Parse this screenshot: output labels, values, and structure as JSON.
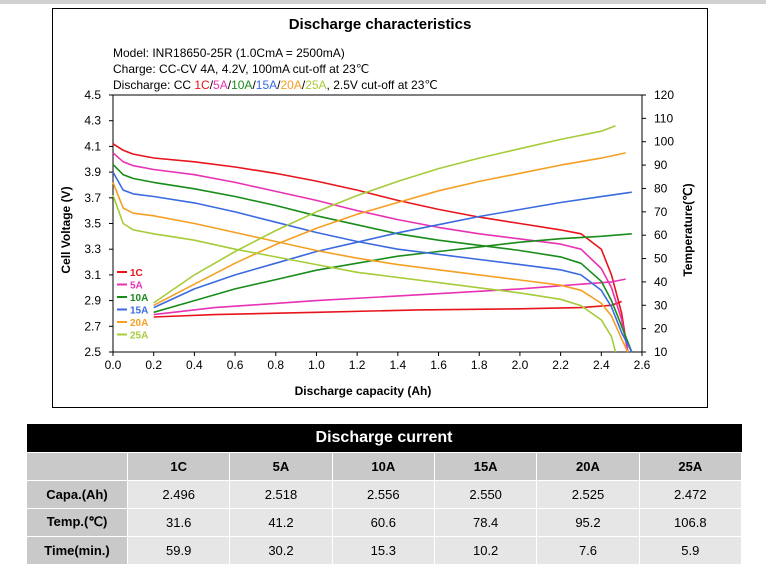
{
  "chart_data": {
    "type": "line",
    "title": "Discharge characteristics",
    "notes": {
      "model": "Model: INR18650-25R (1.0CmA = 2500mA)",
      "charge": "Charge: CC-CV 4A, 4.2V, 100mA cut-off at 23℃",
      "discharge_prefix": "Discharge: CC ",
      "discharge_suffix": ", 2.5V cut-off at 23℃",
      "sep": "/"
    },
    "xlabel": "Discharge capacity (Ah)",
    "ylabel": "Cell Voltage (V)",
    "y2label": "Temperature(℃)",
    "xlim": [
      0.0,
      2.6
    ],
    "ylim": [
      2.5,
      4.5
    ],
    "y2lim": [
      10,
      120
    ],
    "x_ticks": [
      "0.0",
      "0.2",
      "0.4",
      "0.6",
      "0.8",
      "1.0",
      "1.2",
      "1.4",
      "1.6",
      "1.8",
      "2.0",
      "2.2",
      "2.4",
      "2.6"
    ],
    "y_ticks": [
      "4.5",
      "4.3",
      "4.1",
      "3.9",
      "3.7",
      "3.5",
      "3.3",
      "3.1",
      "2.9",
      "2.7",
      "2.5"
    ],
    "y2_ticks": [
      "120",
      "110",
      "100",
      "90",
      "80",
      "70",
      "60",
      "50",
      "40",
      "30",
      "20",
      "10"
    ],
    "legend_position": "bottom-left",
    "series": [
      {
        "name": "1C",
        "color": "#e8141c",
        "voltage": [
          [
            0.0,
            4.12
          ],
          [
            0.05,
            4.07
          ],
          [
            0.1,
            4.04
          ],
          [
            0.2,
            4.01
          ],
          [
            0.4,
            3.98
          ],
          [
            0.6,
            3.94
          ],
          [
            0.8,
            3.89
          ],
          [
            1.0,
            3.83
          ],
          [
            1.2,
            3.76
          ],
          [
            1.4,
            3.68
          ],
          [
            1.6,
            3.61
          ],
          [
            1.8,
            3.55
          ],
          [
            2.0,
            3.5
          ],
          [
            2.2,
            3.45
          ],
          [
            2.3,
            3.42
          ],
          [
            2.4,
            3.3
          ],
          [
            2.45,
            3.1
          ],
          [
            2.5,
            2.8
          ],
          [
            2.52,
            2.6
          ],
          [
            2.53,
            2.5
          ]
        ],
        "temperature": [
          [
            0.2,
            25
          ],
          [
            0.5,
            26
          ],
          [
            1.0,
            27
          ],
          [
            1.5,
            28
          ],
          [
            2.0,
            28.5
          ],
          [
            2.3,
            29
          ],
          [
            2.45,
            30
          ],
          [
            2.5,
            31.6
          ]
        ]
      },
      {
        "name": "5A",
        "color": "#e832b4",
        "voltage": [
          [
            0.0,
            4.05
          ],
          [
            0.05,
            3.98
          ],
          [
            0.1,
            3.95
          ],
          [
            0.2,
            3.92
          ],
          [
            0.4,
            3.88
          ],
          [
            0.6,
            3.82
          ],
          [
            0.8,
            3.75
          ],
          [
            1.0,
            3.68
          ],
          [
            1.2,
            3.6
          ],
          [
            1.4,
            3.53
          ],
          [
            1.6,
            3.47
          ],
          [
            1.8,
            3.42
          ],
          [
            2.0,
            3.38
          ],
          [
            2.2,
            3.34
          ],
          [
            2.3,
            3.3
          ],
          [
            2.4,
            3.15
          ],
          [
            2.45,
            3.0
          ],
          [
            2.5,
            2.75
          ],
          [
            2.53,
            2.5
          ]
        ],
        "temperature": [
          [
            0.2,
            26
          ],
          [
            0.5,
            29
          ],
          [
            1.0,
            32
          ],
          [
            1.5,
            34.5
          ],
          [
            2.0,
            37
          ],
          [
            2.3,
            39
          ],
          [
            2.45,
            40
          ],
          [
            2.52,
            41.2
          ]
        ]
      },
      {
        "name": "10A",
        "color": "#1a8c1a",
        "voltage": [
          [
            0.0,
            3.96
          ],
          [
            0.05,
            3.88
          ],
          [
            0.1,
            3.85
          ],
          [
            0.2,
            3.82
          ],
          [
            0.4,
            3.77
          ],
          [
            0.6,
            3.71
          ],
          [
            0.8,
            3.64
          ],
          [
            1.0,
            3.56
          ],
          [
            1.2,
            3.49
          ],
          [
            1.4,
            3.42
          ],
          [
            1.6,
            3.37
          ],
          [
            1.8,
            3.33
          ],
          [
            2.0,
            3.29
          ],
          [
            2.2,
            3.24
          ],
          [
            2.3,
            3.19
          ],
          [
            2.4,
            3.05
          ],
          [
            2.45,
            2.9
          ],
          [
            2.5,
            2.7
          ],
          [
            2.55,
            2.5
          ]
        ],
        "temperature": [
          [
            0.2,
            27
          ],
          [
            0.4,
            32
          ],
          [
            0.6,
            37
          ],
          [
            0.8,
            41
          ],
          [
            1.0,
            45
          ],
          [
            1.2,
            48
          ],
          [
            1.4,
            51
          ],
          [
            1.6,
            53
          ],
          [
            1.8,
            55
          ],
          [
            2.0,
            57
          ],
          [
            2.2,
            58.5
          ],
          [
            2.4,
            59.5
          ],
          [
            2.55,
            60.6
          ]
        ]
      },
      {
        "name": "15A",
        "color": "#3b6ae0",
        "voltage": [
          [
            0.0,
            3.9
          ],
          [
            0.05,
            3.76
          ],
          [
            0.1,
            3.73
          ],
          [
            0.2,
            3.71
          ],
          [
            0.4,
            3.66
          ],
          [
            0.6,
            3.59
          ],
          [
            0.8,
            3.51
          ],
          [
            1.0,
            3.43
          ],
          [
            1.2,
            3.36
          ],
          [
            1.4,
            3.3
          ],
          [
            1.6,
            3.26
          ],
          [
            1.8,
            3.22
          ],
          [
            2.0,
            3.18
          ],
          [
            2.2,
            3.14
          ],
          [
            2.3,
            3.1
          ],
          [
            2.4,
            2.98
          ],
          [
            2.45,
            2.85
          ],
          [
            2.5,
            2.65
          ],
          [
            2.55,
            2.5
          ]
        ],
        "temperature": [
          [
            0.2,
            29
          ],
          [
            0.4,
            37
          ],
          [
            0.6,
            43
          ],
          [
            0.8,
            48
          ],
          [
            1.0,
            53
          ],
          [
            1.2,
            57
          ],
          [
            1.4,
            61
          ],
          [
            1.6,
            64.5
          ],
          [
            1.8,
            68
          ],
          [
            2.0,
            71
          ],
          [
            2.2,
            74
          ],
          [
            2.4,
            76.5
          ],
          [
            2.55,
            78.4
          ]
        ]
      },
      {
        "name": "20A",
        "color": "#f5a024",
        "voltage": [
          [
            0.0,
            3.82
          ],
          [
            0.05,
            3.62
          ],
          [
            0.1,
            3.58
          ],
          [
            0.2,
            3.56
          ],
          [
            0.4,
            3.5
          ],
          [
            0.6,
            3.43
          ],
          [
            0.8,
            3.36
          ],
          [
            1.0,
            3.29
          ],
          [
            1.2,
            3.23
          ],
          [
            1.4,
            3.18
          ],
          [
            1.6,
            3.14
          ],
          [
            1.8,
            3.1
          ],
          [
            2.0,
            3.06
          ],
          [
            2.2,
            3.02
          ],
          [
            2.3,
            2.98
          ],
          [
            2.4,
            2.88
          ],
          [
            2.45,
            2.78
          ],
          [
            2.5,
            2.6
          ],
          [
            2.53,
            2.5
          ]
        ],
        "temperature": [
          [
            0.2,
            30
          ],
          [
            0.4,
            39
          ],
          [
            0.6,
            48
          ],
          [
            0.8,
            56
          ],
          [
            1.0,
            63
          ],
          [
            1.2,
            69
          ],
          [
            1.4,
            74
          ],
          [
            1.6,
            79
          ],
          [
            1.8,
            83
          ],
          [
            2.0,
            86.5
          ],
          [
            2.2,
            90
          ],
          [
            2.4,
            93
          ],
          [
            2.52,
            95.2
          ]
        ]
      },
      {
        "name": "25A",
        "color": "#a6cc3a",
        "voltage": [
          [
            0.0,
            3.72
          ],
          [
            0.05,
            3.5
          ],
          [
            0.1,
            3.45
          ],
          [
            0.2,
            3.42
          ],
          [
            0.4,
            3.37
          ],
          [
            0.6,
            3.3
          ],
          [
            0.8,
            3.24
          ],
          [
            1.0,
            3.18
          ],
          [
            1.2,
            3.12
          ],
          [
            1.4,
            3.08
          ],
          [
            1.6,
            3.04
          ],
          [
            1.8,
            3.0
          ],
          [
            2.0,
            2.96
          ],
          [
            2.2,
            2.91
          ],
          [
            2.3,
            2.86
          ],
          [
            2.4,
            2.75
          ],
          [
            2.45,
            2.62
          ],
          [
            2.47,
            2.5
          ]
        ],
        "temperature": [
          [
            0.2,
            31
          ],
          [
            0.4,
            43
          ],
          [
            0.6,
            53
          ],
          [
            0.8,
            62
          ],
          [
            1.0,
            70
          ],
          [
            1.2,
            77
          ],
          [
            1.4,
            83
          ],
          [
            1.6,
            88.5
          ],
          [
            1.8,
            93
          ],
          [
            2.0,
            97
          ],
          [
            2.2,
            101
          ],
          [
            2.4,
            104.5
          ],
          [
            2.47,
            106.8
          ]
        ]
      }
    ]
  },
  "table": {
    "title": "Discharge current",
    "columns": [
      "1C",
      "5A",
      "10A",
      "15A",
      "20A",
      "25A"
    ],
    "rows": [
      {
        "label": "Capa.(Ah)",
        "values": [
          "2.496",
          "2.518",
          "2.556",
          "2.550",
          "2.525",
          "2.472"
        ]
      },
      {
        "label": "Temp.(℃)",
        "values": [
          "31.6",
          "41.2",
          "60.6",
          "78.4",
          "95.2",
          "106.8"
        ]
      },
      {
        "label": "Time(min.)",
        "values": [
          "59.9",
          "30.2",
          "15.3",
          "10.2",
          "7.6",
          "5.9"
        ]
      }
    ]
  }
}
